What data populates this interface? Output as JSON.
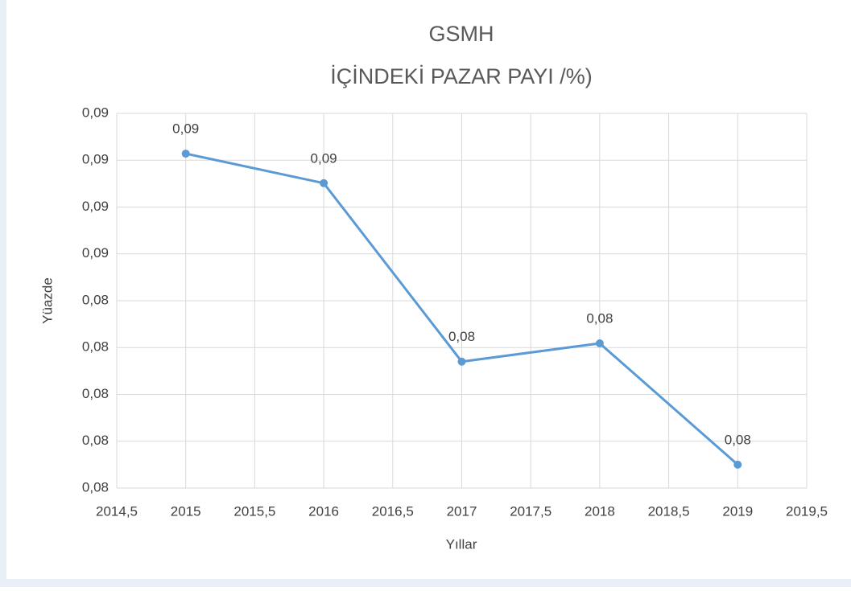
{
  "chart_data": {
    "type": "line",
    "title_lines": [
      "GSMH",
      "İÇİNDEKİ PAZAR PAYI /%)"
    ],
    "x_label": "Yıllar",
    "y_label": "Yüazde",
    "x": [
      2015,
      2016,
      2017,
      2018,
      2019
    ],
    "series": [
      {
        "color": "#5b9bd5",
        "values": [
          0.08714,
          0.08651,
          0.0827,
          0.08309,
          0.0805
        ],
        "value_labels": [
          "0,09",
          "0,09",
          "0,08",
          "0,08",
          "0,08"
        ]
      }
    ],
    "xlim": [
      2014.5,
      2019.5
    ],
    "xticks": [
      {
        "value": 2014.5,
        "label": "2014,5"
      },
      2015,
      {
        "value": 2015.5,
        "label": "2015,5"
      },
      2016,
      {
        "value": 2016.5,
        "label": "2016,5"
      },
      2017,
      {
        "value": 2017.5,
        "label": "2017,5"
      },
      2018,
      {
        "value": 2018.5,
        "label": "2018,5"
      },
      2019,
      {
        "value": 2019.5,
        "label": "2019,5"
      }
    ],
    "ylim": [
      0.08,
      0.088
    ],
    "yticks": [
      {
        "value": 0.08,
        "label": "0,08"
      },
      {
        "value": 0.081,
        "label": "0,08"
      },
      {
        "value": 0.082,
        "label": "0,08"
      },
      {
        "value": 0.083,
        "label": "0,08"
      },
      {
        "value": 0.084,
        "label": "0,08"
      },
      {
        "value": 0.085,
        "label": "0,09"
      },
      {
        "value": 0.086,
        "label": "0,09"
      },
      {
        "value": 0.087,
        "label": "0,09"
      },
      {
        "value": 0.088,
        "label": "0,09"
      }
    ],
    "grid": true
  }
}
